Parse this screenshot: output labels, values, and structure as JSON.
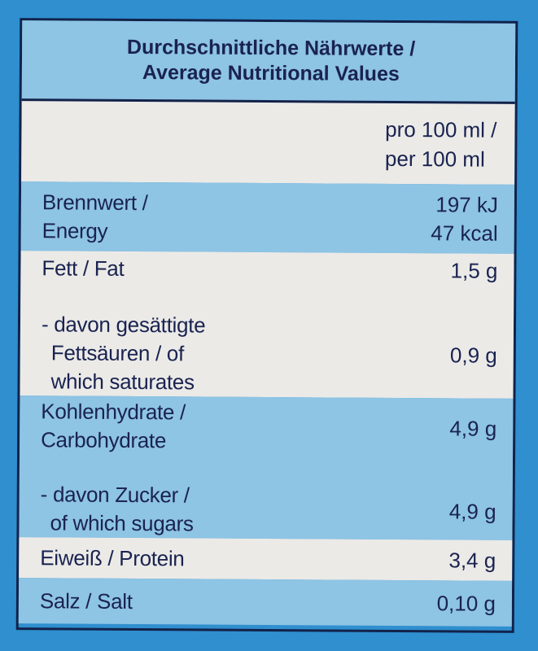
{
  "header": {
    "title_de": "Durchschnittliche Nährwerte /",
    "title_en": "Average Nutritional Values"
  },
  "column_header": {
    "line1": "pro 100 ml /",
    "line2": "per 100 ml"
  },
  "rows": {
    "energy": {
      "label_de": "Brennwert /",
      "label_en": "Energy",
      "value_kj": "197 kJ",
      "value_kcal": "47 kcal"
    },
    "fat": {
      "label": "Fett / Fat",
      "value": "1,5 g",
      "sub_line1": "- davon gesättigte",
      "sub_line2": "Fettsäuren / of",
      "sub_line3": "which saturates",
      "sub_value": "0,9 g"
    },
    "carbohydrate": {
      "label_de": "Kohlenhydrate /",
      "label_en": "Carbohydrate",
      "value": "4,9 g",
      "sub_line1": "- davon Zucker /",
      "sub_line2": "of which sugars",
      "sub_value": "4,9 g"
    },
    "protein": {
      "label": "Eiweiß / Protein",
      "value": "3,4 g"
    },
    "salt": {
      "label": "Salz / Salt",
      "value": "0,10 g"
    }
  },
  "colors": {
    "background": "#2f8fcf",
    "light_row": "#ebeae7",
    "blue_row": "#8ec4e4",
    "text": "#1a2350",
    "border": "#12224a"
  }
}
